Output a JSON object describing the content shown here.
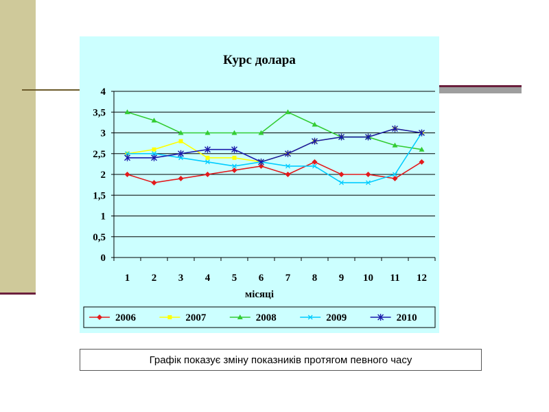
{
  "chart_data": {
    "type": "line",
    "title": "Курс долара",
    "xlabel": "місяці",
    "ylabel": "",
    "categories": [
      "1",
      "2",
      "3",
      "4",
      "5",
      "6",
      "7",
      "8",
      "9",
      "10",
      "11",
      "12"
    ],
    "ylim": [
      0,
      4
    ],
    "yticks": [
      "0",
      "0,5",
      "1",
      "1,5",
      "2",
      "2,5",
      "3",
      "3,5",
      "4"
    ],
    "grid": true,
    "legend_position": "bottom",
    "series": [
      {
        "name": "2006",
        "color": "#e31a1c",
        "marker": "diamond",
        "values": [
          2.0,
          1.8,
          1.9,
          2.0,
          2.1,
          2.2,
          2.0,
          2.3,
          2.0,
          2.0,
          1.9,
          2.3
        ]
      },
      {
        "name": "2007",
        "color": "#ffff00",
        "marker": "square",
        "values": [
          2.5,
          2.6,
          2.8,
          2.4,
          2.4,
          2.3,
          2.5,
          2.8,
          2.9,
          2.9,
          3.1,
          3.0
        ]
      },
      {
        "name": "2008",
        "color": "#33cc33",
        "marker": "triangle",
        "values": [
          3.5,
          3.3,
          3.0,
          3.0,
          3.0,
          3.0,
          3.5,
          3.2,
          2.9,
          2.9,
          2.7,
          2.6
        ]
      },
      {
        "name": "2009",
        "color": "#00ccff",
        "marker": "x",
        "values": [
          2.5,
          2.5,
          2.4,
          2.3,
          2.2,
          2.3,
          2.2,
          2.2,
          1.8,
          1.8,
          2.0,
          3.0
        ]
      },
      {
        "name": "2010",
        "color": "#1a1aaa",
        "marker": "star",
        "values": [
          2.4,
          2.4,
          2.5,
          2.6,
          2.6,
          2.3,
          2.5,
          2.8,
          2.9,
          2.9,
          3.1,
          3.0
        ]
      }
    ]
  },
  "caption": {
    "text": "Графік показує зміну показників протягом певного часу"
  }
}
